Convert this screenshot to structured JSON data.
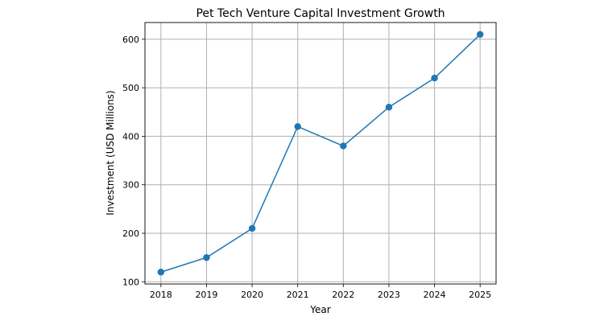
{
  "chart_data": {
    "type": "line",
    "title": "Pet Tech Venture Capital Investment Growth",
    "xlabel": "Year",
    "ylabel": "Investment (USD Millions)",
    "x": [
      2018,
      2019,
      2020,
      2021,
      2022,
      2023,
      2024,
      2025
    ],
    "series": [
      {
        "values": [
          120,
          150,
          210,
          420,
          380,
          460,
          520,
          610
        ],
        "color": "#1f77b4",
        "marker": "circle"
      }
    ],
    "xticks": [
      "2018",
      "2019",
      "2020",
      "2021",
      "2022",
      "2023",
      "2024",
      "2025"
    ],
    "yticks": [
      "100",
      "200",
      "300",
      "400",
      "500",
      "600"
    ],
    "xlim": [
      2017.65,
      2025.35
    ],
    "ylim": [
      95.5,
      634.5
    ],
    "grid": true
  }
}
